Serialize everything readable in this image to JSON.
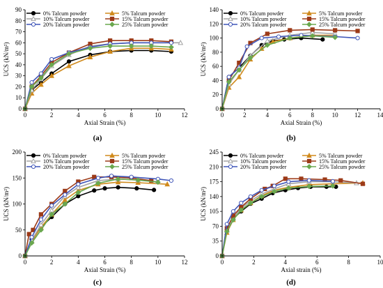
{
  "colors": {
    "0% Talcum powder": "#000000",
    "5% Talcum powder": "#d08a1c",
    "10% Talcum powder": "#a3a3a3",
    "15% Talcum powder": "#9c3a18",
    "20% Talcum powder": "#3f55b8",
    "25% Talcum powder": "#6aa84f"
  },
  "markers": {
    "0% Talcum powder": "circle",
    "5% Talcum powder": "triangle",
    "10% Talcum powder": "triangle-open",
    "15% Talcum powder": "square",
    "20% Talcum powder": "circle-open",
    "25% Talcum powder": "diamond"
  },
  "chart_data": [
    {
      "panel": "(a)",
      "type": "line",
      "xlabel": "Axial Strain (%)",
      "ylabel": "UCS (kN/m²)",
      "xlim": [
        0,
        12
      ],
      "ylim": [
        0,
        90
      ],
      "xticks": [
        0,
        2,
        4,
        6,
        8,
        10,
        12
      ],
      "yticks": [
        0,
        10,
        20,
        30,
        40,
        50,
        60,
        70,
        80,
        90
      ],
      "legend": "top-left",
      "series": [
        {
          "name": "0% Talcum powder",
          "x": [
            0,
            0.5,
            1.2,
            2.0,
            3.3,
            4.9,
            6.4,
            8.0,
            9.5,
            11.0
          ],
          "y": [
            0,
            17,
            24,
            32,
            43,
            49,
            52,
            53,
            53,
            52
          ]
        },
        {
          "name": "5% Talcum powder",
          "x": [
            0,
            0.5,
            1.2,
            2.0,
            3.3,
            4.9,
            6.4,
            8.0,
            9.5,
            11.0
          ],
          "y": [
            0,
            14,
            22,
            30,
            39,
            47,
            52,
            55,
            55,
            54
          ]
        },
        {
          "name": "10% Talcum powder",
          "x": [
            0,
            0.5,
            1.2,
            2.0,
            3.3,
            4.9,
            6.4,
            8.0,
            9.5,
            11.7
          ],
          "y": [
            0,
            17,
            27,
            39,
            49,
            57,
            59,
            60,
            60,
            60
          ]
        },
        {
          "name": "15% Talcum powder",
          "x": [
            0,
            0.5,
            1.2,
            2.0,
            3.3,
            4.9,
            6.4,
            8.0,
            9.5,
            11.0
          ],
          "y": [
            0,
            20,
            30,
            42,
            51,
            59,
            62,
            62,
            62,
            61
          ]
        },
        {
          "name": "20% Talcum powder",
          "x": [
            0,
            0.5,
            1.2,
            2.0,
            3.3,
            4.9,
            6.4,
            8.0,
            9.5,
            11.0
          ],
          "y": [
            0,
            24,
            32,
            45,
            51,
            56,
            59,
            60,
            60,
            60
          ]
        },
        {
          "name": "25% Talcum powder",
          "x": [
            0,
            0.5,
            1.2,
            2.0,
            3.3,
            4.9,
            6.4,
            8.0,
            9.5,
            11.0
          ],
          "y": [
            0,
            20,
            28,
            40,
            50,
            55,
            57,
            57,
            57,
            56
          ]
        }
      ]
    },
    {
      "panel": "(b)",
      "type": "line",
      "xlabel": "Axial Strain (%)",
      "ylabel": "UCS (kN/m²)",
      "xlim": [
        0,
        14
      ],
      "ylim": [
        0,
        140
      ],
      "xticks": [
        0,
        2,
        4,
        6,
        8,
        10,
        12,
        14
      ],
      "yticks": [
        0,
        20,
        40,
        60,
        80,
        100,
        120,
        140
      ],
      "legend": "top-left",
      "series": [
        {
          "name": "0% Talcum powder",
          "x": [
            0,
            0.6,
            1.5,
            2.5,
            3.5,
            4.5,
            5.5,
            7.0,
            8.9
          ],
          "y": [
            0,
            45,
            58,
            75,
            90,
            96,
            98,
            100,
            98
          ]
        },
        {
          "name": "5% Talcum powder",
          "x": [
            0,
            0.6,
            1.5,
            2.5,
            3.5,
            4.5,
            6.0,
            8.0,
            10.0
          ],
          "y": [
            0,
            30,
            45,
            70,
            85,
            95,
            100,
            104,
            104
          ]
        },
        {
          "name": "10% Talcum powder",
          "x": [
            0,
            0.6,
            1.5,
            2.5,
            4.0,
            6.0,
            8.0,
            10.0
          ],
          "y": [
            0,
            35,
            55,
            75,
            96,
            104,
            108,
            106
          ]
        },
        {
          "name": "15% Talcum powder",
          "x": [
            0,
            0.6,
            1.5,
            2.5,
            4.0,
            6.0,
            8.0,
            10.0,
            12.0
          ],
          "y": [
            0,
            40,
            65,
            93,
            106,
            111,
            112,
            111,
            110
          ]
        },
        {
          "name": "20% Talcum powder",
          "x": [
            0,
            0.6,
            1.5,
            2.2,
            3.5,
            5.0,
            7.0,
            10.0,
            12.0
          ],
          "y": [
            0,
            45,
            58,
            88,
            100,
            102,
            104,
            102,
            100
          ]
        },
        {
          "name": "25% Talcum powder",
          "x": [
            0,
            0.6,
            1.5,
            2.5,
            4.0,
            6.0,
            8.0,
            10.0
          ],
          "y": [
            0,
            38,
            55,
            72,
            90,
            100,
            103,
            101
          ]
        }
      ]
    },
    {
      "panel": "(c)",
      "type": "line",
      "xlabel": "Axial Strain (%)",
      "ylabel": "UCS (kN/m²)",
      "xlim": [
        0,
        12
      ],
      "ylim": [
        0,
        200
      ],
      "xticks": [
        0,
        2,
        4,
        6,
        8,
        10,
        12
      ],
      "yticks": [
        0,
        50,
        100,
        150,
        200
      ],
      "legend": "top-left",
      "series": [
        {
          "name": "0% Talcum powder",
          "x": [
            0,
            0.5,
            1.2,
            2.0,
            3.0,
            4.0,
            5.2,
            6.0,
            7.0,
            8.4,
            9.7
          ],
          "y": [
            0,
            32,
            55,
            75,
            100,
            115,
            126,
            130,
            132,
            130,
            127
          ]
        },
        {
          "name": "5% Talcum powder",
          "x": [
            0,
            0.5,
            1.2,
            2.0,
            3.0,
            4.0,
            5.5,
            7.0,
            8.5,
            10.7
          ],
          "y": [
            0,
            28,
            55,
            80,
            108,
            126,
            138,
            142,
            141,
            138
          ]
        },
        {
          "name": "10% Talcum powder",
          "x": [
            0,
            0.5,
            1.2,
            2.0,
            3.0,
            4.0,
            5.5,
            7.0,
            8.5,
            10.0
          ],
          "y": [
            0,
            30,
            60,
            88,
            115,
            132,
            145,
            148,
            146,
            143
          ]
        },
        {
          "name": "15% Talcum powder",
          "x": [
            0,
            0.3,
            0.6,
            1.2,
            2.0,
            3.0,
            4.0,
            5.2,
            6.5,
            8.0,
            9.5
          ],
          "y": [
            0,
            42,
            50,
            80,
            100,
            125,
            143,
            152,
            152,
            150,
            145
          ]
        },
        {
          "name": "20% Talcum powder",
          "x": [
            0,
            0.5,
            1.2,
            2.0,
            3.0,
            4.0,
            5.5,
            6.5,
            8.0,
            10.0,
            11.0
          ],
          "y": [
            0,
            36,
            70,
            97,
            118,
            138,
            150,
            154,
            152,
            148,
            145
          ]
        },
        {
          "name": "25% Talcum powder",
          "x": [
            0,
            0.5,
            1.2,
            2.0,
            3.0,
            4.0,
            5.5,
            7.0,
            8.5,
            10.0
          ],
          "y": [
            0,
            25,
            50,
            80,
            100,
            122,
            140,
            148,
            146,
            142
          ]
        }
      ]
    },
    {
      "panel": "(d)",
      "type": "line",
      "xlabel": "Axial strain (%)",
      "ylabel": "UCS (kN/m²)",
      "xlim": [
        0,
        10
      ],
      "ylim": [
        0,
        245
      ],
      "xticks": [
        0,
        2,
        4,
        6,
        8,
        10
      ],
      "yticks": [
        0,
        35,
        70,
        105,
        140,
        175,
        210,
        245
      ],
      "legend": "top-left",
      "series": [
        {
          "name": "0% Talcum powder",
          "x": [
            0,
            0.3,
            0.7,
            1.2,
            1.8,
            2.5,
            3.2,
            4.0,
            4.8,
            5.6,
            6.6,
            7.2
          ],
          "y": [
            0,
            62,
            88,
            105,
            123,
            135,
            148,
            155,
            160,
            163,
            163,
            163
          ]
        },
        {
          "name": "5% Talcum powder",
          "x": [
            0,
            0.3,
            0.7,
            1.2,
            1.8,
            2.5,
            3.3,
            4.2,
            5.5,
            7.0,
            8.9
          ],
          "y": [
            0,
            55,
            85,
            108,
            125,
            142,
            155,
            162,
            168,
            170,
            172
          ]
        },
        {
          "name": "10% Talcum powder",
          "x": [
            0,
            0.3,
            0.7,
            1.2,
            1.8,
            2.5,
            3.3,
            4.2,
            5.5,
            7.0,
            8.5
          ],
          "y": [
            0,
            60,
            90,
            112,
            130,
            146,
            158,
            170,
            175,
            175,
            172
          ]
        },
        {
          "name": "15% Talcum powder",
          "x": [
            0,
            0.3,
            0.7,
            1.2,
            1.8,
            2.7,
            3.2,
            4.0,
            5.0,
            6.5,
            7.5,
            8.9
          ],
          "y": [
            0,
            65,
            95,
            115,
            135,
            158,
            165,
            182,
            182,
            180,
            178,
            170
          ]
        },
        {
          "name": "20% Talcum powder",
          "x": [
            0,
            0.3,
            0.7,
            1.2,
            1.8,
            2.5,
            3.3,
            4.2,
            5.5,
            7.0
          ],
          "y": [
            0,
            75,
            105,
            125,
            140,
            155,
            165,
            175,
            178,
            176
          ]
        },
        {
          "name": "25% Talcum powder",
          "x": [
            0,
            0.3,
            0.7,
            1.2,
            1.8,
            2.5,
            3.3,
            4.2,
            5.5,
            7.0
          ],
          "y": [
            0,
            58,
            85,
            108,
            125,
            140,
            152,
            160,
            164,
            165
          ]
        }
      ]
    }
  ]
}
